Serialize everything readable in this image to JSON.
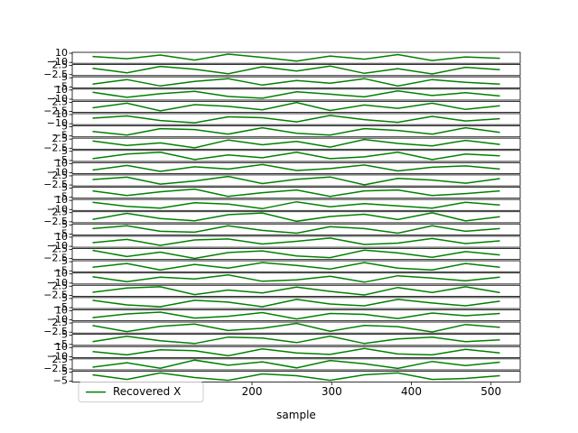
{
  "chart_data": [
    {
      "type": "line",
      "x": [
        0,
        43,
        85,
        128,
        170,
        213,
        256,
        298,
        341,
        383,
        426,
        468,
        511
      ],
      "ylim": [
        -12,
        12
      ],
      "yticks": [
        {
          "value": -10,
          "label": "−10"
        },
        10
      ],
      "series": [
        {
          "color": "#008000",
          "values": [
            3,
            -2,
            6,
            -5,
            8,
            1,
            -7,
            4,
            -3,
            7,
            -6,
            2,
            -1
          ]
        }
      ]
    },
    {
      "type": "line",
      "x": [
        0,
        43,
        85,
        128,
        170,
        213,
        256,
        298,
        341,
        383,
        426,
        468,
        511
      ],
      "ylim": [
        -3,
        3
      ],
      "yticks": [
        {
          "value": -2.5,
          "label": "−2.5"
        },
        2.5
      ],
      "series": [
        {
          "color": "#008000",
          "values": [
            1,
            -1.5,
            2,
            0.5,
            -2,
            1.8,
            -0.5,
            2.2,
            -1.8,
            0.8,
            -2.1,
            1.5,
            0.2
          ]
        }
      ]
    },
    {
      "type": "line",
      "x": [
        0,
        43,
        85,
        128,
        170,
        213,
        256,
        298,
        341,
        383,
        426,
        468,
        511
      ],
      "ylim": [
        -6,
        6
      ],
      "yticks": [
        {
          "value": -5,
          "label": "−5"
        },
        5
      ],
      "series": [
        {
          "color": "#008000",
          "values": [
            -2,
            3,
            -4,
            1,
            4,
            -3,
            2,
            -1,
            4,
            -4,
            3,
            0,
            -2
          ]
        }
      ]
    },
    {
      "type": "line",
      "x": [
        0,
        43,
        85,
        128,
        170,
        213,
        256,
        298,
        341,
        383,
        426,
        468,
        511
      ],
      "ylim": [
        -12,
        12
      ],
      "yticks": [
        {
          "value": -10,
          "label": "−10"
        },
        10
      ],
      "series": [
        {
          "color": "#008000",
          "values": [
            5,
            -6,
            2,
            7,
            -4,
            -8,
            6,
            1,
            -5,
            8,
            -2,
            4,
            -3
          ]
        }
      ]
    },
    {
      "type": "line",
      "x": [
        0,
        43,
        85,
        128,
        170,
        213,
        256,
        298,
        341,
        383,
        426,
        468,
        511
      ],
      "ylim": [
        -3,
        3
      ],
      "yticks": [
        {
          "value": -2.5,
          "label": "−2.5"
        },
        2.5
      ],
      "series": [
        {
          "color": "#008000",
          "values": [
            -0.5,
            2,
            -2.2,
            1.2,
            0.3,
            -1.6,
            2.4,
            -2,
            1,
            -0.8,
            2,
            -1.4,
            0.6
          ]
        }
      ]
    },
    {
      "type": "line",
      "x": [
        0,
        43,
        85,
        128,
        170,
        213,
        256,
        298,
        341,
        383,
        426,
        468,
        511
      ],
      "ylim": [
        -12,
        12
      ],
      "yticks": [
        {
          "value": -10,
          "label": "−10"
        },
        10
      ],
      "series": [
        {
          "color": "#008000",
          "values": [
            2,
            7,
            -3,
            -8,
            5,
            3,
            -6,
            8,
            -1,
            -7,
            6,
            -4,
            1
          ]
        }
      ]
    },
    {
      "type": "line",
      "x": [
        0,
        43,
        85,
        128,
        170,
        213,
        256,
        298,
        341,
        383,
        426,
        468,
        511
      ],
      "ylim": [
        -6,
        6
      ],
      "yticks": [
        {
          "value": -5,
          "label": "−5"
        },
        5
      ],
      "series": [
        {
          "color": "#008000",
          "values": [
            0,
            -4,
            3,
            2,
            -3,
            4,
            -2,
            -4,
            3,
            1,
            -3,
            4,
            -1
          ]
        }
      ]
    },
    {
      "type": "line",
      "x": [
        0,
        43,
        85,
        128,
        170,
        213,
        256,
        298,
        341,
        383,
        426,
        468,
        511
      ],
      "ylim": [
        -3,
        3
      ],
      "yticks": [
        {
          "value": -2.5,
          "label": "−2.5"
        },
        2.5
      ],
      "series": [
        {
          "color": "#008000",
          "values": [
            1.5,
            -1,
            0.4,
            -2.3,
            2,
            -0.6,
            1.2,
            -1.9,
            2.3,
            0.1,
            -1.2,
            1.8,
            -0.4
          ]
        }
      ]
    },
    {
      "type": "line",
      "x": [
        0,
        43,
        85,
        128,
        170,
        213,
        256,
        298,
        341,
        383,
        426,
        468,
        511
      ],
      "ylim": [
        -6,
        6
      ],
      "yticks": [
        {
          "value": -5,
          "label": "−5"
        },
        5
      ],
      "series": [
        {
          "color": "#008000",
          "values": [
            -3,
            2,
            4,
            -4,
            1,
            -2,
            4,
            -3,
            -1,
            4,
            -4,
            2,
            0
          ]
        }
      ]
    },
    {
      "type": "line",
      "x": [
        0,
        43,
        85,
        128,
        170,
        213,
        256,
        298,
        341,
        383,
        426,
        468,
        511
      ],
      "ylim": [
        -12,
        12
      ],
      "yticks": [
        {
          "value": -10,
          "label": "−10"
        },
        10
      ],
      "series": [
        {
          "color": "#008000",
          "values": [
            -4,
            6,
            -7,
            3,
            -2,
            8,
            -5,
            -1,
            7,
            -6,
            2,
            5,
            -2
          ]
        }
      ]
    },
    {
      "type": "line",
      "x": [
        0,
        43,
        85,
        128,
        170,
        213,
        256,
        298,
        341,
        383,
        426,
        468,
        511
      ],
      "ylim": [
        -3,
        3
      ],
      "yticks": [
        {
          "value": -2.5,
          "label": "−2.5"
        },
        2.5
      ],
      "series": [
        {
          "color": "#008000",
          "values": [
            0.5,
            1.8,
            -2,
            -0.3,
            2.2,
            -1.7,
            0.6,
            1.9,
            -2.4,
            1.1,
            0.2,
            -1.5,
            1
          ]
        }
      ]
    },
    {
      "type": "line",
      "x": [
        0,
        43,
        85,
        128,
        170,
        213,
        256,
        298,
        341,
        383,
        426,
        468,
        511
      ],
      "ylim": [
        -6,
        6
      ],
      "yticks": [
        {
          "value": -5,
          "label": "−5"
        },
        5
      ],
      "series": [
        {
          "color": "#008000",
          "values": [
            2,
            -3,
            1,
            4,
            -4,
            0,
            3,
            -4,
            2,
            3,
            -3,
            -1,
            2
          ]
        }
      ]
    },
    {
      "type": "line",
      "x": [
        0,
        43,
        85,
        128,
        170,
        213,
        256,
        298,
        341,
        383,
        426,
        468,
        511
      ],
      "ylim": [
        -12,
        12
      ],
      "yticks": [
        {
          "value": -10,
          "label": "−10"
        },
        10
      ],
      "series": [
        {
          "color": "#008000",
          "values": [
            6,
            -3,
            -7,
            5,
            2,
            -8,
            7,
            -4,
            3,
            -2,
            -7,
            6,
            0
          ]
        }
      ]
    },
    {
      "type": "line",
      "x": [
        0,
        43,
        85,
        128,
        170,
        213,
        256,
        298,
        341,
        383,
        426,
        468,
        511
      ],
      "ylim": [
        -3,
        3
      ],
      "yticks": [
        {
          "value": -2.5,
          "label": "−2.5"
        },
        2.5
      ],
      "series": [
        {
          "color": "#008000",
          "values": [
            -1.2,
            2.1,
            -0.7,
            -1.9,
            1.4,
            2.3,
            -2.2,
            0.4,
            1.6,
            -1.3,
            2.4,
            -2,
            0.3
          ]
        }
      ]
    },
    {
      "type": "line",
      "x": [
        0,
        43,
        85,
        128,
        170,
        213,
        256,
        298,
        341,
        383,
        426,
        468,
        511
      ],
      "ylim": [
        -6,
        6
      ],
      "yticks": [
        {
          "value": -5,
          "label": "−5"
        },
        5
      ],
      "series": [
        {
          "color": "#008000",
          "values": [
            1,
            4,
            -2,
            -3,
            4,
            -1,
            -4,
            3,
            1,
            -4,
            4,
            -2,
            1
          ]
        }
      ]
    },
    {
      "type": "line",
      "x": [
        0,
        43,
        85,
        128,
        170,
        213,
        256,
        298,
        341,
        383,
        426,
        468,
        511
      ],
      "ylim": [
        -12,
        12
      ],
      "yticks": [
        {
          "value": -10,
          "label": "−10"
        },
        10
      ],
      "series": [
        {
          "color": "#008000",
          "values": [
            -2,
            5,
            -8,
            4,
            6,
            -5,
            1,
            8,
            -6,
            -3,
            7,
            -4,
            2
          ]
        }
      ]
    },
    {
      "type": "line",
      "x": [
        0,
        43,
        85,
        128,
        170,
        213,
        256,
        298,
        341,
        383,
        426,
        468,
        511
      ],
      "ylim": [
        -3,
        3
      ],
      "yticks": [
        {
          "value": -2.5,
          "label": "−2.5"
        },
        2.5
      ],
      "series": [
        {
          "color": "#008000",
          "values": [
            2,
            -1.4,
            1,
            -2.4,
            0.8,
            1.7,
            -1.1,
            -2,
            2.1,
            0.6,
            -1.8,
            1.3,
            -0.5
          ]
        }
      ]
    },
    {
      "type": "line",
      "x": [
        0,
        43,
        85,
        128,
        170,
        213,
        256,
        298,
        341,
        383,
        426,
        468,
        511
      ],
      "ylim": [
        -6,
        6
      ],
      "yticks": [
        {
          "value": -5,
          "label": "−5"
        },
        5
      ],
      "series": [
        {
          "color": "#008000",
          "values": [
            -1,
            3,
            -4,
            2,
            -2,
            4,
            1,
            -3,
            4,
            -2,
            -4,
            3,
            -1
          ]
        }
      ]
    },
    {
      "type": "line",
      "x": [
        0,
        43,
        85,
        128,
        170,
        213,
        256,
        298,
        341,
        383,
        426,
        468,
        511
      ],
      "ylim": [
        -12,
        12
      ],
      "yticks": [
        {
          "value": -10,
          "label": "−10"
        },
        10
      ],
      "series": [
        {
          "color": "#008000",
          "values": [
            4,
            -7,
            3,
            -1,
            8,
            -6,
            -3,
            5,
            -8,
            6,
            1,
            -5,
            3
          ]
        }
      ]
    },
    {
      "type": "line",
      "x": [
        0,
        43,
        85,
        128,
        170,
        213,
        256,
        298,
        341,
        383,
        426,
        468,
        511
      ],
      "ylim": [
        -3,
        3
      ],
      "yticks": [
        {
          "value": -2.5,
          "label": "−2.5"
        },
        2.5
      ],
      "series": [
        {
          "color": "#008000",
          "values": [
            -0.8,
            1.5,
            2.2,
            -2.1,
            0.4,
            -1.2,
            2,
            -0.3,
            -2.3,
            1.8,
            -0.9,
            2.2,
            -1
          ]
        }
      ]
    },
    {
      "type": "line",
      "x": [
        0,
        43,
        85,
        128,
        170,
        213,
        256,
        298,
        341,
        383,
        426,
        468,
        511
      ],
      "ylim": [
        -6,
        6
      ],
      "yticks": [
        {
          "value": -5,
          "label": "−5"
        },
        5
      ],
      "series": [
        {
          "color": "#008000",
          "values": [
            3,
            -2,
            -4,
            3,
            1,
            -4,
            4,
            -1,
            -3,
            4,
            0,
            -3,
            2
          ]
        }
      ]
    },
    {
      "type": "line",
      "x": [
        0,
        43,
        85,
        128,
        170,
        213,
        256,
        298,
        341,
        383,
        426,
        468,
        511
      ],
      "ylim": [
        -12,
        12
      ],
      "yticks": [
        {
          "value": -10,
          "label": "−10"
        },
        10
      ],
      "series": [
        {
          "color": "#008000",
          "values": [
            -5,
            3,
            7,
            -6,
            -2,
            6,
            -8,
            4,
            2,
            -7,
            5,
            -1,
            4
          ]
        }
      ]
    },
    {
      "type": "line",
      "x": [
        0,
        43,
        85,
        128,
        170,
        213,
        256,
        298,
        341,
        383,
        426,
        468,
        511
      ],
      "ylim": [
        -3,
        3
      ],
      "yticks": [
        {
          "value": -2.5,
          "label": "−2.5"
        },
        2.5
      ],
      "series": [
        {
          "color": "#008000",
          "values": [
            1.1,
            -2.2,
            0.7,
            1.9,
            -1.6,
            -0.4,
            2.3,
            -2,
            1.2,
            0.5,
            -2.4,
            1.7,
            0.1
          ]
        }
      ]
    },
    {
      "type": "line",
      "x": [
        0,
        43,
        85,
        128,
        170,
        213,
        256,
        298,
        341,
        383,
        426,
        468,
        511
      ],
      "ylim": [
        -6,
        6
      ],
      "yticks": [
        {
          "value": -5,
          "label": "−5"
        },
        5
      ],
      "series": [
        {
          "color": "#008000",
          "values": [
            -2,
            4,
            -1,
            -4,
            3,
            2,
            -3,
            4,
            -4,
            1,
            3,
            -2,
            0
          ]
        }
      ]
    },
    {
      "type": "line",
      "x": [
        0,
        43,
        85,
        128,
        170,
        213,
        256,
        298,
        341,
        383,
        426,
        468,
        511
      ],
      "ylim": [
        -12,
        12
      ],
      "yticks": [
        {
          "value": -10,
          "label": "−10"
        },
        10
      ],
      "series": [
        {
          "color": "#008000",
          "values": [
            1,
            -6,
            5,
            3,
            -8,
            7,
            -2,
            -5,
            8,
            -4,
            -6,
            6,
            -2
          ]
        }
      ]
    },
    {
      "type": "line",
      "x": [
        0,
        43,
        85,
        128,
        170,
        213,
        256,
        298,
        341,
        383,
        426,
        468,
        511
      ],
      "ylim": [
        -3,
        3
      ],
      "yticks": [
        {
          "value": -2.5,
          "label": "−2.5"
        },
        2.5
      ],
      "series": [
        {
          "color": "#008000",
          "values": [
            -1.5,
            0.9,
            -2.1,
            2.3,
            -0.5,
            1.4,
            -1.9,
            2.1,
            0.3,
            -2.2,
            1.6,
            -0.7,
            1.2
          ]
        }
      ]
    },
    {
      "type": "line",
      "x": [
        0,
        43,
        85,
        128,
        170,
        213,
        256,
        298,
        341,
        383,
        426,
        468,
        511
      ],
      "ylim": [
        -6,
        6
      ],
      "yticks": [
        {
          "value": -5,
          "label": "−5"
        },
        5
      ],
      "xlim": [
        -25.55,
        536.55
      ],
      "xticks": [
        0,
        100,
        200,
        300,
        400,
        500
      ],
      "xlabel": "sample",
      "legend": "lower left",
      "series": [
        {
          "name": "Recovered X",
          "color": "#008000",
          "values": [
            2,
            -3,
            4,
            -1,
            -4,
            3,
            1,
            -4,
            2,
            4,
            -3,
            -2,
            1
          ]
        }
      ]
    }
  ]
}
